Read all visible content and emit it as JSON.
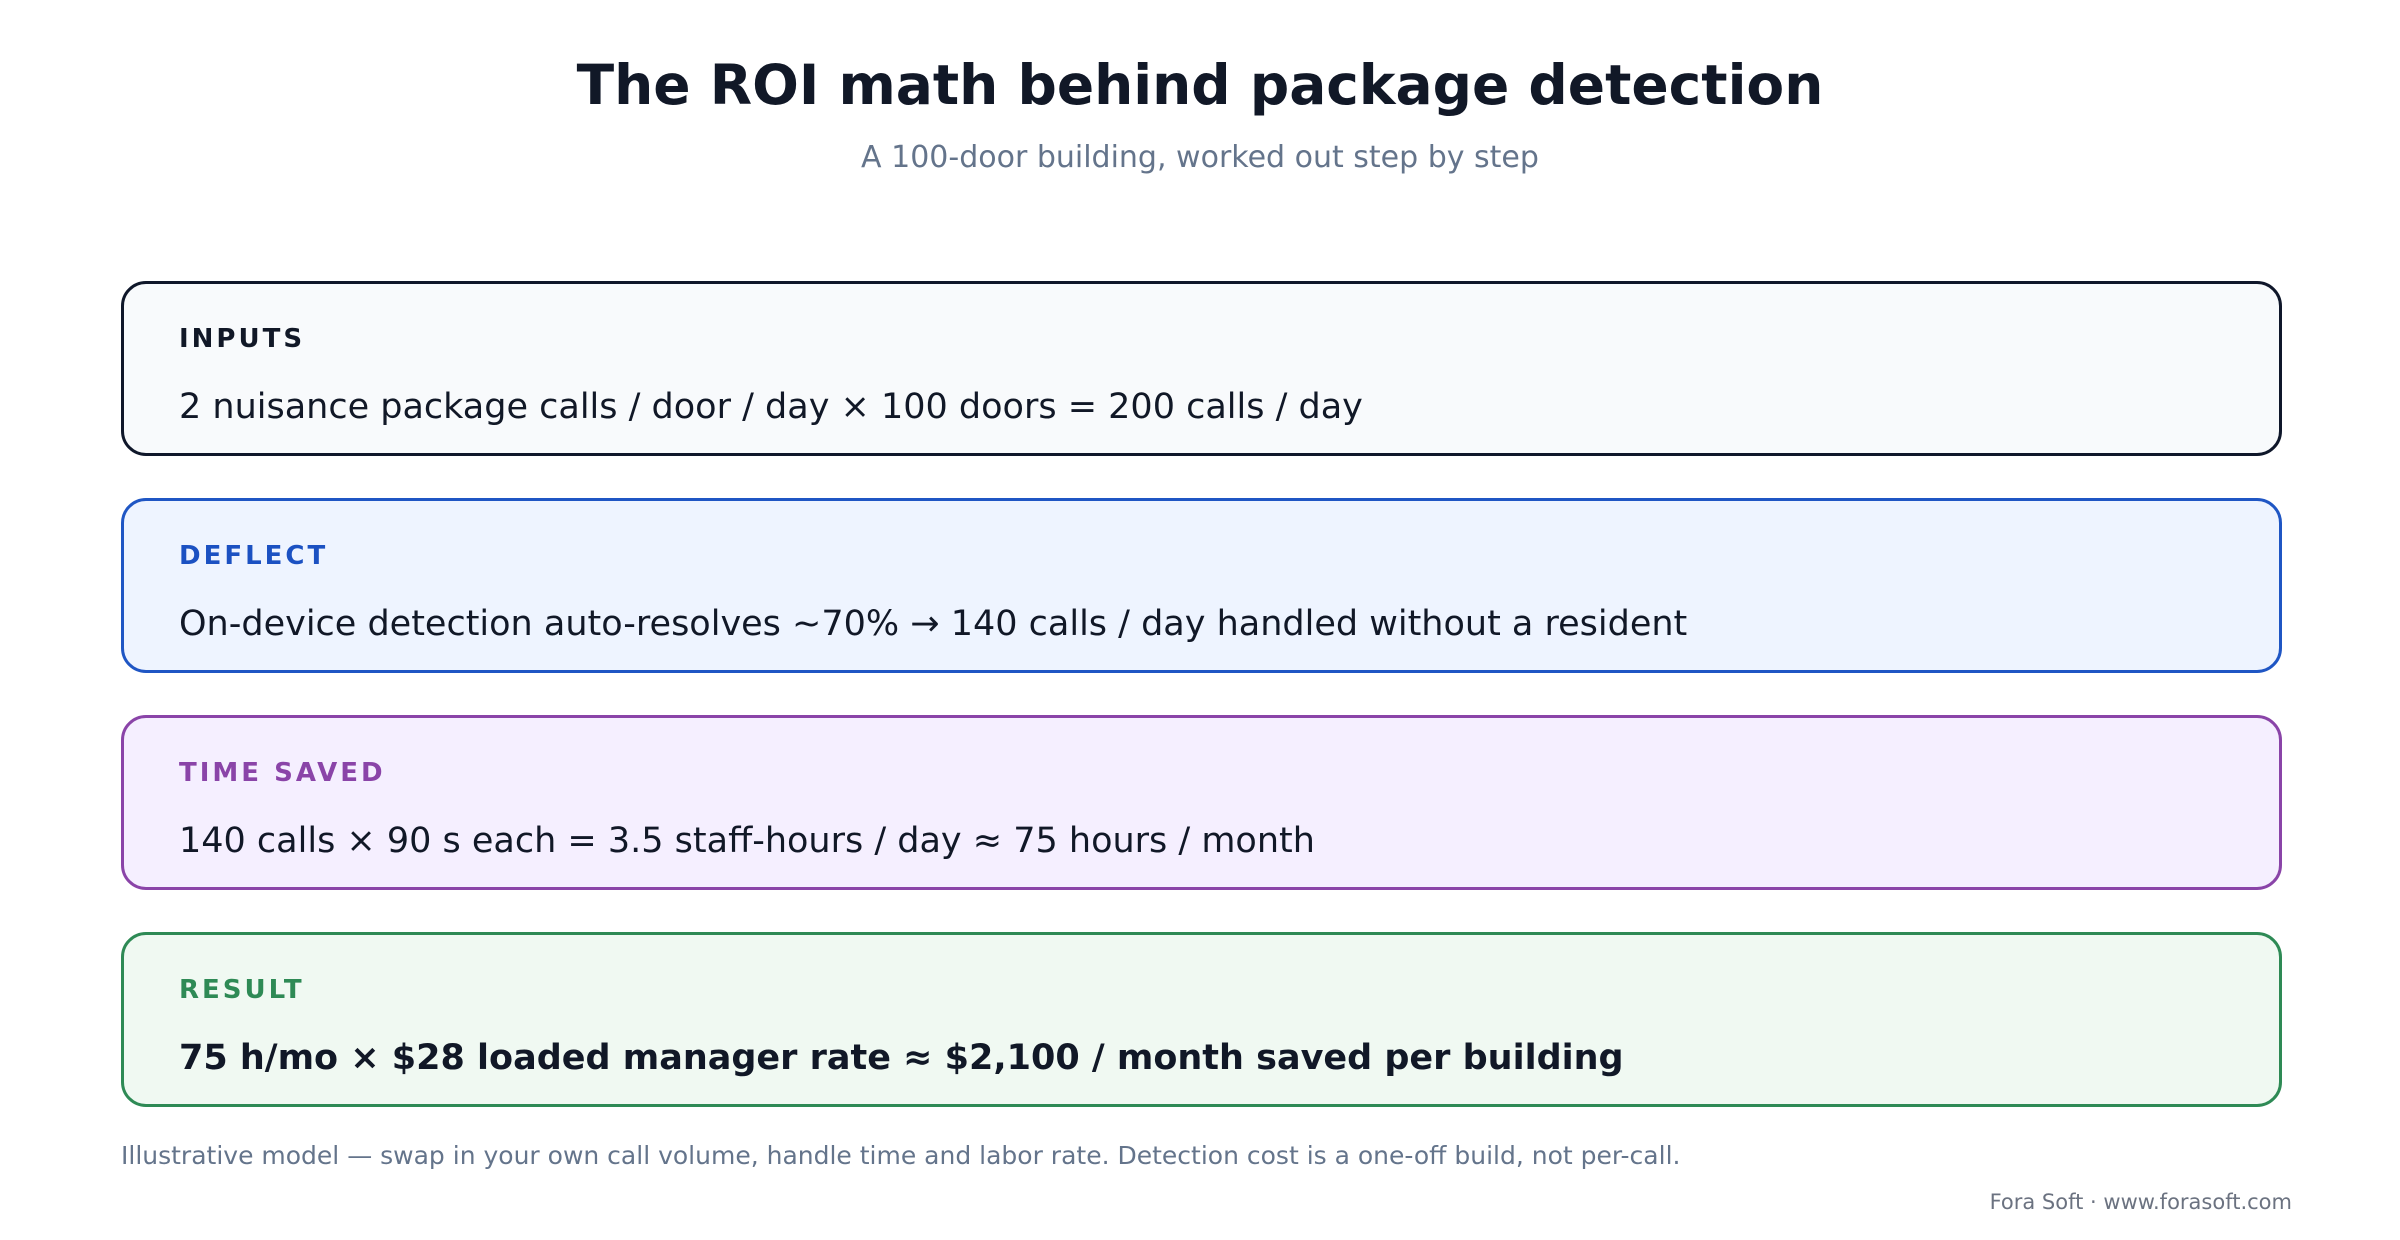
{
  "header": {
    "title": "The ROI math behind package detection",
    "subtitle": "A 100-door building, worked out step by step"
  },
  "steps": [
    {
      "label": "INPUTS",
      "text": "2 nuisance package calls / door / day × 100 doors = 200 calls / day",
      "color": "#0f172a"
    },
    {
      "label": "DEFLECT",
      "text": "On-device detection auto-resolves ~70% → 140 calls / day handled without a resident",
      "color": "#1f56c4"
    },
    {
      "label": "TIME SAVED",
      "text": "140 calls × 90 s each = 3.5 staff-hours / day ≈ 75 hours / month",
      "color": "#8a44a8"
    },
    {
      "label": "RESULT",
      "text": "75 h/mo × $28 loaded manager rate ≈ $2,100 / month saved per building",
      "color": "#2e8a55"
    }
  ],
  "footer": {
    "note": "Illustrative model — swap in your own call volume, handle time and labor rate. Detection cost is a one-off build, not per-call.",
    "credit": "Fora Soft · www.forasoft.com"
  }
}
